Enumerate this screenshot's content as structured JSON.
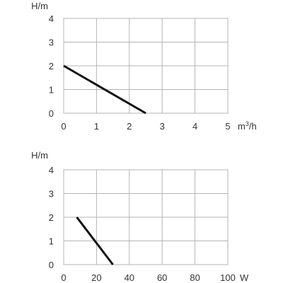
{
  "chart_data": [
    {
      "type": "line",
      "title": "",
      "ylabel": "H/m",
      "xlabel_unit_base": "m",
      "xlabel_unit_exp": "3",
      "xlabel_unit_tail": "/h",
      "xlim": [
        0,
        5
      ],
      "ylim": [
        0,
        4
      ],
      "x_ticks": [
        0,
        1,
        2,
        3,
        4,
        5
      ],
      "x_tick_labels": [
        "0",
        "1",
        "2",
        "3",
        "4",
        "5"
      ],
      "y_ticks": [
        0,
        1,
        2,
        3,
        4
      ],
      "y_tick_labels": [
        "0",
        "1",
        "2",
        "3",
        "4"
      ],
      "grid": true,
      "series": [
        {
          "x": [
            0,
            2.5
          ],
          "y": [
            2,
            0
          ]
        }
      ]
    },
    {
      "type": "line",
      "title": "",
      "ylabel": "H/m",
      "xlabel_unit": "W",
      "xlim": [
        0,
        100
      ],
      "ylim": [
        0,
        4
      ],
      "x_ticks": [
        0,
        20,
        40,
        60,
        80,
        100
      ],
      "x_tick_labels": [
        "0",
        "20",
        "40",
        "60",
        "80",
        "100"
      ],
      "y_ticks": [
        0,
        1,
        2,
        3,
        4
      ],
      "y_tick_labels": [
        "0",
        "1",
        "2",
        "3",
        "4"
      ],
      "grid": true,
      "series": [
        {
          "x": [
            8,
            30
          ],
          "y": [
            2,
            0
          ]
        }
      ]
    }
  ],
  "colors": {
    "grid": "#b4b4b4",
    "curve": "#111111",
    "text": "#333333"
  }
}
